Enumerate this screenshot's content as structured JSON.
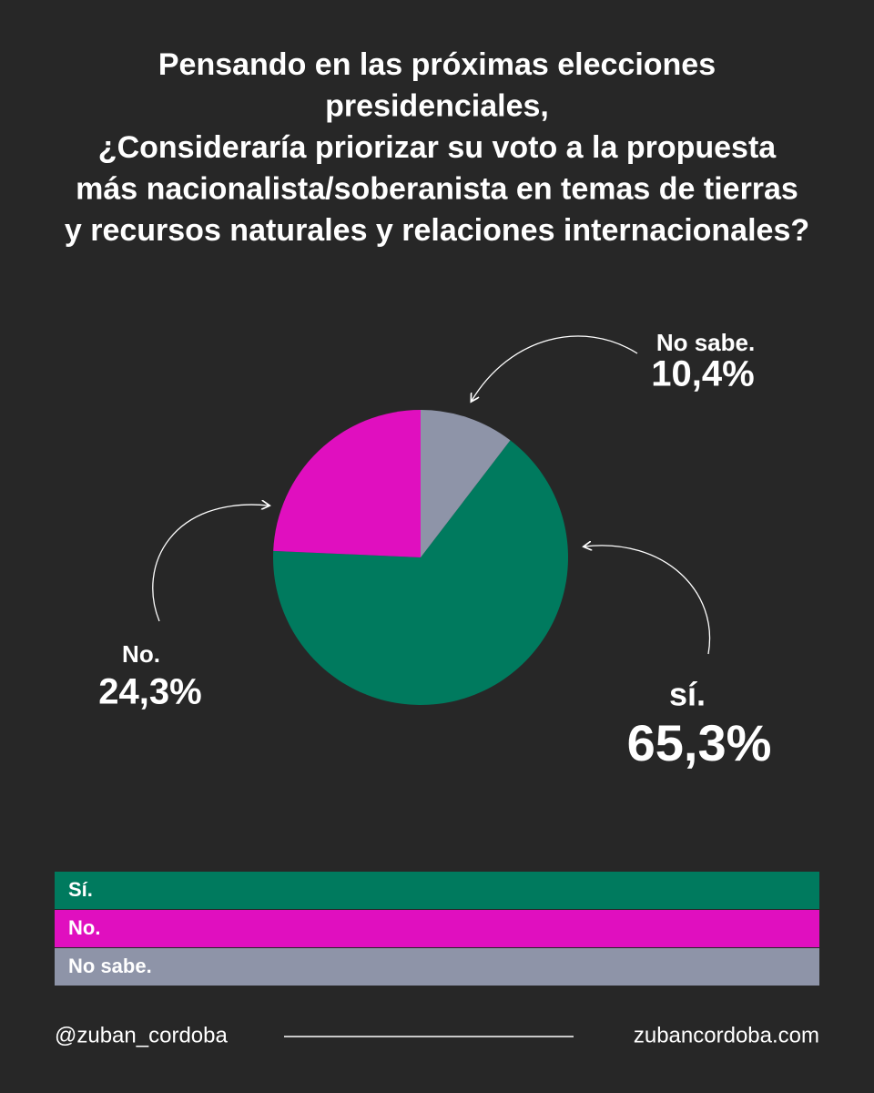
{
  "chart_data": {
    "type": "pie",
    "title": [
      "Pensando en las próximas elecciones",
      "presidenciales,",
      "¿Consideraría priorizar su voto a la propuesta",
      "más nacionalista/soberanista en temas de tierras",
      "y recursos naturales y relaciones internacionales?"
    ],
    "categories": [
      "Sí.",
      "No.",
      "No sabe."
    ],
    "slice_labels": [
      "sí.",
      "No.",
      "No sabe."
    ],
    "values": [
      65.3,
      24.3,
      10.4
    ],
    "value_labels": [
      "65,3%",
      "24,3%",
      "10,4%"
    ],
    "colors": [
      "#007a5e",
      "#e00fbf",
      "#8e94a8"
    ]
  },
  "footer": {
    "handle": "@zuban_cordoba",
    "website": "zubancordoba.com"
  }
}
